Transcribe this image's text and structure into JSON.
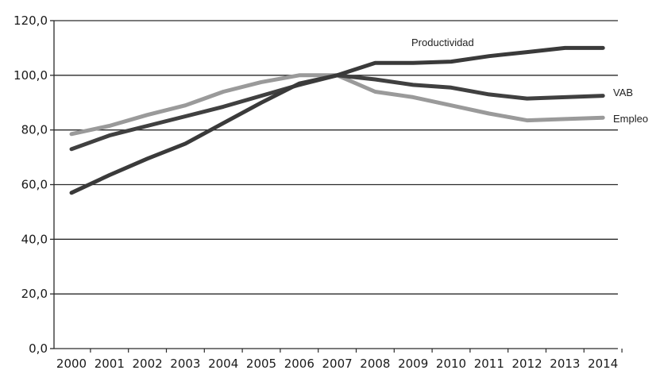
{
  "chart_data": {
    "type": "line",
    "x": [
      "2000",
      "2001",
      "2002",
      "2003",
      "2004",
      "2005",
      "2006",
      "2007",
      "2008",
      "2009",
      "2010",
      "2011",
      "2012",
      "2013",
      "2014"
    ],
    "y_ticks": [
      "0,0",
      "20,0",
      "40,0",
      "60,0",
      "80,0",
      "100,0",
      "120,0"
    ],
    "ylim": [
      0,
      120
    ],
    "grid": true,
    "series": [
      {
        "name": "Productividad",
        "color": "#3a3a3a",
        "values": [
          57.0,
          63.5,
          69.5,
          75.0,
          82.5,
          90.0,
          97.0,
          100.0,
          104.5,
          104.5,
          105.0,
          107.0,
          108.5,
          110.0,
          110.0
        ]
      },
      {
        "name": "VAB",
        "color": "#404040",
        "values": [
          73.0,
          78.0,
          81.5,
          85.0,
          88.5,
          92.5,
          96.5,
          100.0,
          98.5,
          96.5,
          95.5,
          93.0,
          91.5,
          92.0,
          92.5
        ]
      },
      {
        "name": "Empleo",
        "color": "#9a9a9a",
        "values": [
          78.5,
          81.5,
          85.5,
          89.0,
          94.0,
          97.5,
          100.0,
          100.0,
          94.0,
          92.0,
          89.0,
          86.0,
          83.5,
          84.0,
          84.5
        ]
      }
    ]
  }
}
